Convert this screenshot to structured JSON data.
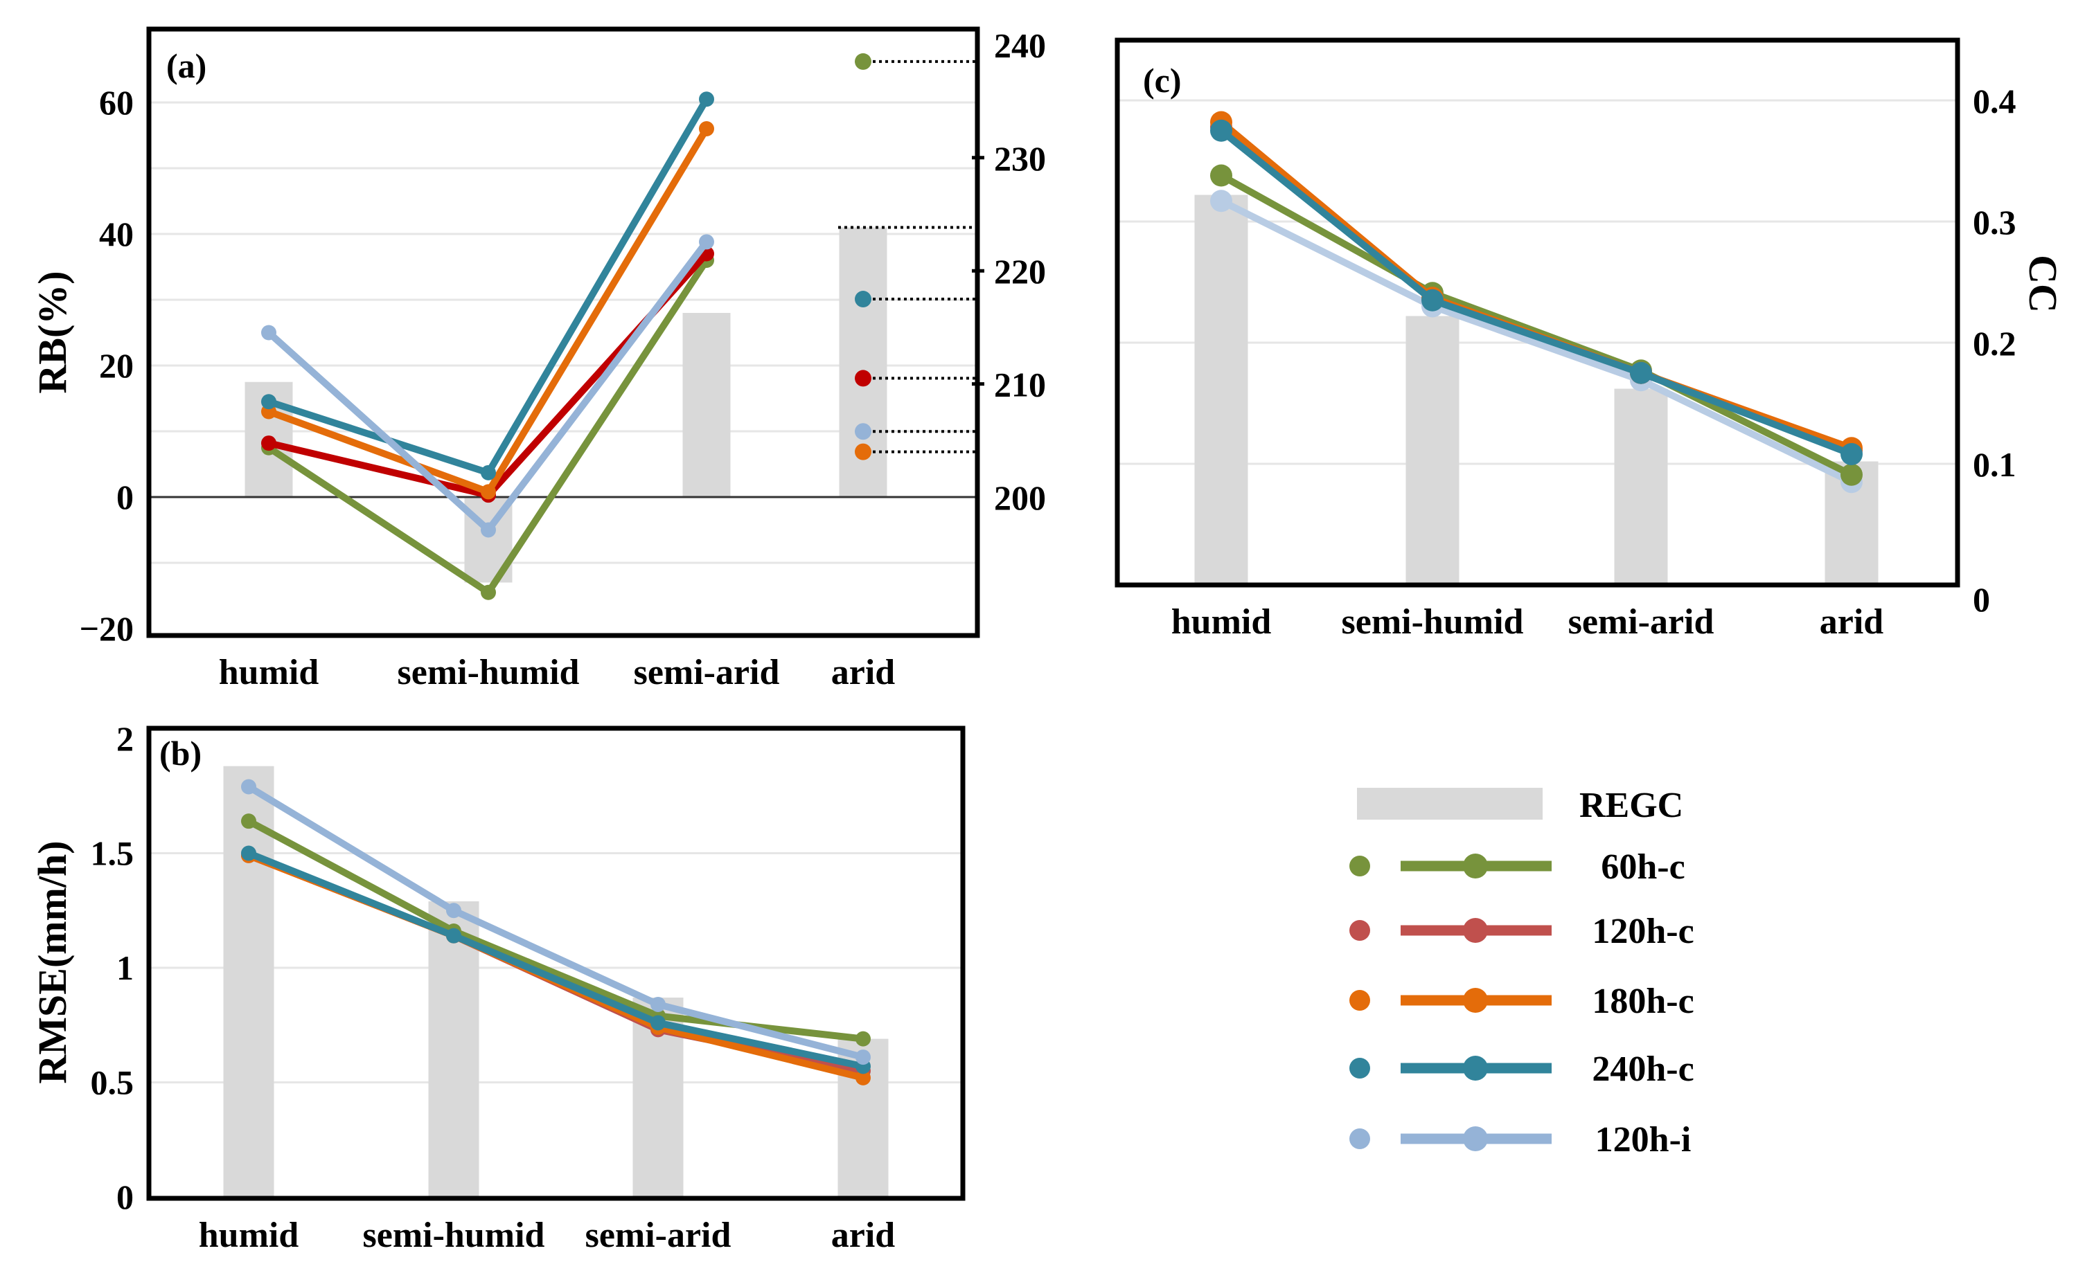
{
  "colors": {
    "bar": "#d9d9d9",
    "grid": "#e6e6e6",
    "axis": "#000000"
  },
  "legend": {
    "bar_label": "REGC",
    "series": [
      {
        "name": "60h-c",
        "color": "#77933c"
      },
      {
        "name": "120h-c",
        "color": "#c0504d"
      },
      {
        "name": "180h-c",
        "color": "#e46c0a"
      },
      {
        "name": "240h-c",
        "color": "#31849b"
      },
      {
        "name": "120h-i",
        "color": "#95b3d7"
      }
    ]
  },
  "chart_data": [
    {
      "panel_label": "(a)",
      "type": "bar+line",
      "ylabel": "RB(%)",
      "categories": [
        "humid",
        "semi-humid",
        "semi-arid",
        "arid"
      ],
      "yticks": [
        "−20",
        "0",
        "20",
        "40",
        "60"
      ],
      "ytick_values": [
        -20,
        0,
        20,
        40,
        60
      ],
      "ylim": [
        -21,
        71
      ],
      "right_axis": {
        "ticks": [
          "200",
          "210",
          "220",
          "230",
          "240"
        ],
        "tick_values": [
          200,
          210,
          220,
          230,
          240
        ]
      },
      "bars": {
        "name": "REGC",
        "values": [
          17.5,
          -13,
          28,
          41
        ]
      },
      "series": [
        {
          "name": "60h-c",
          "color": "#77933c",
          "values": [
            7.5,
            -14.5,
            36,
            null
          ],
          "arid_right_axis": 238.5
        },
        {
          "name": "120h-c",
          "color": "#c00000",
          "values": [
            8.2,
            0.3,
            37,
            null
          ],
          "arid_right_axis": 210.5
        },
        {
          "name": "180h-c",
          "color": "#e46c0a",
          "values": [
            13,
            0.8,
            56,
            null
          ],
          "arid_right_axis": 204
        },
        {
          "name": "240h-c",
          "color": "#31849b",
          "values": [
            14.5,
            3.7,
            60.5,
            null
          ],
          "arid_right_axis": 217.5
        },
        {
          "name": "120h-i",
          "color": "#95b3d7",
          "values": [
            25,
            -5,
            38.8,
            null
          ],
          "arid_right_axis": 205.8
        }
      ]
    },
    {
      "panel_label": "(b)",
      "type": "bar+line",
      "ylabel": "RMSE(mm/h)",
      "categories": [
        "humid",
        "semi-humid",
        "semi-arid",
        "arid"
      ],
      "yticks": [
        "0",
        "0.5",
        "1",
        "1.5",
        "2"
      ],
      "ytick_values": [
        0,
        0.5,
        1,
        1.5,
        2
      ],
      "ylim": [
        0,
        2
      ],
      "bars": {
        "name": "REGC",
        "values": [
          1.88,
          1.29,
          0.87,
          0.69
        ]
      },
      "series": [
        {
          "name": "120h-c",
          "color": "#c0504d",
          "values": [
            1.49,
            1.14,
            0.73,
            0.55
          ]
        },
        {
          "name": "180h-c",
          "color": "#e46c0a",
          "values": [
            1.49,
            1.14,
            0.74,
            0.52
          ]
        },
        {
          "name": "60h-c",
          "color": "#77933c",
          "values": [
            1.64,
            1.16,
            0.79,
            0.69
          ]
        },
        {
          "name": "240h-c",
          "color": "#31849b",
          "values": [
            1.5,
            1.14,
            0.76,
            0.57
          ]
        },
        {
          "name": "120h-i",
          "color": "#95b3d7",
          "values": [
            1.79,
            1.25,
            0.84,
            0.61
          ]
        }
      ]
    },
    {
      "panel_label": "(c)",
      "type": "bar+line",
      "ylabel": "CC",
      "categories": [
        "humid",
        "semi-humid",
        "semi-arid",
        "arid"
      ],
      "yticks": [
        "0",
        "0.1",
        "0.2",
        "0.3",
        "0.4"
      ],
      "ytick_values": [
        0,
        0.1,
        0.2,
        0.3,
        0.4
      ],
      "ylim": [
        0,
        0.45
      ],
      "bars": {
        "name": "REGC",
        "values": [
          0.322,
          0.222,
          0.162,
          0.102
        ]
      },
      "series": [
        {
          "name": "120h-i",
          "color": "#b8cce4",
          "values": [
            0.317,
            0.23,
            0.169,
            0.085
          ]
        },
        {
          "name": "60h-c",
          "color": "#77933c",
          "values": [
            0.338,
            0.241,
            0.177,
            0.091
          ]
        },
        {
          "name": "120h-c",
          "color": "#c0504d",
          "values": [
            0.378,
            0.236,
            0.175,
            0.111
          ]
        },
        {
          "name": "180h-c",
          "color": "#e46c0a",
          "values": [
            0.382,
            0.237,
            0.175,
            0.113
          ]
        },
        {
          "name": "240h-c",
          "color": "#31849b",
          "values": [
            0.375,
            0.235,
            0.175,
            0.108
          ]
        }
      ]
    }
  ]
}
